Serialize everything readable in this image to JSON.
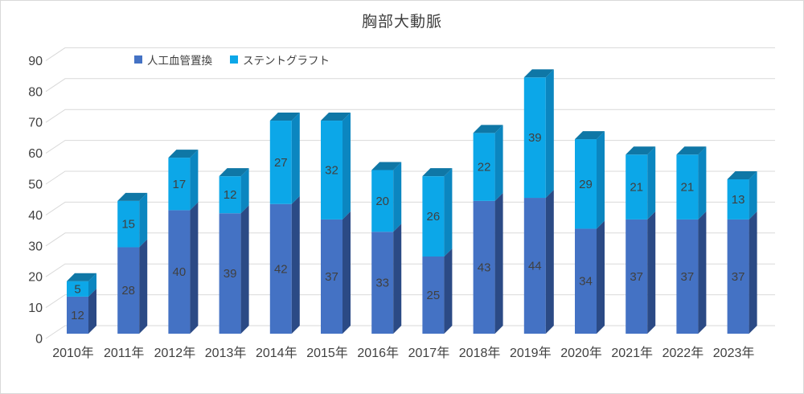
{
  "title": "胸部大動脈",
  "legend": [
    {
      "label": "人工血管置換",
      "color": "#4472c4"
    },
    {
      "label": "ステントグラフト",
      "color": "#0ca7e8"
    }
  ],
  "chart_data": {
    "type": "bar",
    "stacked": true,
    "effect": "3d",
    "title": "胸部大動脈",
    "categories": [
      "2010年",
      "2011年",
      "2012年",
      "2013年",
      "2014年",
      "2015年",
      "2016年",
      "2017年",
      "2018年",
      "2019年",
      "2020年",
      "2021年",
      "2022年",
      "2023年"
    ],
    "series": [
      {
        "name": "人工血管置換",
        "values": [
          12,
          28,
          40,
          39,
          42,
          37,
          33,
          25,
          43,
          44,
          34,
          37,
          37,
          37
        ],
        "color_front": "#4472c4",
        "color_side": "#2b4a85",
        "color_top": "#35589e"
      },
      {
        "name": "ステントグラフト",
        "values": [
          5,
          15,
          17,
          12,
          27,
          32,
          20,
          26,
          22,
          39,
          29,
          21,
          21,
          13
        ],
        "color_front": "#0ca7e8",
        "color_side": "#0b86c0",
        "color_top": "#0f77a6"
      }
    ],
    "xlabel": "",
    "ylabel": "",
    "ylim": [
      0,
      90
    ],
    "yticks": [
      0,
      10,
      20,
      30,
      40,
      50,
      60,
      70,
      80,
      90
    ],
    "grid": true,
    "legend_position": "top",
    "value_labels": "inside-center",
    "label_color": "#404040",
    "grid_color": "#d9d9d9",
    "axis_text_color": "#404040"
  }
}
